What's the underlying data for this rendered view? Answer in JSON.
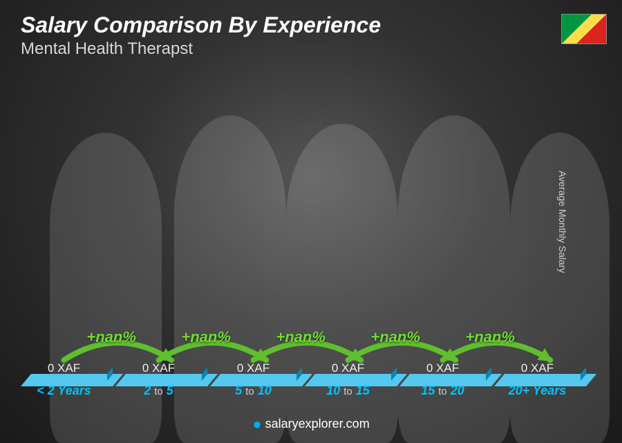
{
  "header": {
    "title": "Salary Comparison By Experience",
    "subtitle": "Mental Health Therapst"
  },
  "side_axis_label": "Average Monthly Salary",
  "footer": {
    "site": "salaryexplorer.com"
  },
  "flag": {
    "country": "Republic of the Congo",
    "stripe_green": "#009543",
    "stripe_yellow": "#fbde4a",
    "stripe_red": "#dc241f"
  },
  "chart": {
    "type": "bar",
    "bar_face_color": "#16aee5",
    "bar_top_color": "#55c8ef",
    "bar_side_color": "#0d84b1",
    "category_color_strong": "#00c2ff",
    "category_color_mid": "#d0d0d0",
    "arc_color": "#5fbf2e",
    "pct_color": "#6fdc2f",
    "value_label_color": "#eeeeee",
    "background": "dark-radial",
    "bars": [
      {
        "category_pre": "< 2",
        "category_post": "Years",
        "value_label": "0 XAF",
        "height_pct": 36
      },
      {
        "category_pre": "2",
        "category_mid": "to",
        "category_post": "5",
        "value_label": "0 XAF",
        "height_pct": 45,
        "pct_from_prev": "+nan%"
      },
      {
        "category_pre": "5",
        "category_mid": "to",
        "category_post": "10",
        "value_label": "0 XAF",
        "height_pct": 57,
        "pct_from_prev": "+nan%"
      },
      {
        "category_pre": "10",
        "category_mid": "to",
        "category_post": "15",
        "value_label": "0 XAF",
        "height_pct": 68,
        "pct_from_prev": "+nan%"
      },
      {
        "category_pre": "15",
        "category_mid": "to",
        "category_post": "20",
        "value_label": "0 XAF",
        "height_pct": 80,
        "pct_from_prev": "+nan%"
      },
      {
        "category_pre": "20+",
        "category_post": "Years",
        "value_label": "0 XAF",
        "height_pct": 92,
        "pct_from_prev": "+nan%"
      }
    ]
  }
}
